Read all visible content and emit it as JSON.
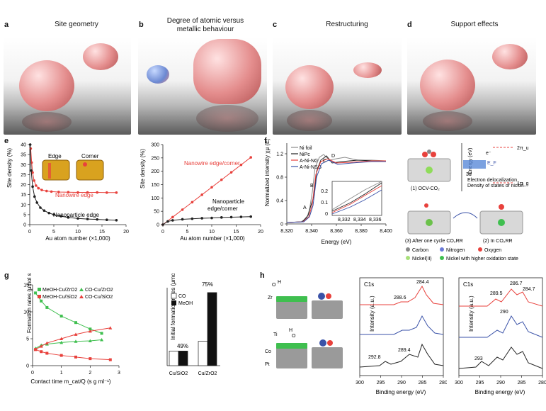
{
  "panels": {
    "a": {
      "label": "a",
      "title": "Site geometry"
    },
    "b": {
      "label": "b",
      "title_line1": "Degree of atomic versus",
      "title_line2": "metallic behaviour"
    },
    "c": {
      "label": "c",
      "title": "Restructuring"
    },
    "d": {
      "label": "d",
      "title": "Support effects"
    },
    "e": {
      "label": "e"
    },
    "f": {
      "label": "f"
    },
    "g": {
      "label": "g"
    },
    "h": {
      "label": "h"
    }
  },
  "colors": {
    "red": "#e8413c",
    "black": "#222222",
    "green": "#3fbf4f",
    "blue": "#3a52a8",
    "gray": "#8a8a8a"
  },
  "chart_data": [
    {
      "id": "e-left",
      "type": "line",
      "xlabel": "Au atom number (×1,000)",
      "ylabel": "Site density (%)",
      "xlim": [
        0,
        20
      ],
      "ylim": [
        0,
        40
      ],
      "xticks": [
        "0",
        "5",
        "10",
        "15",
        "20"
      ],
      "yticks": [
        "0",
        "5",
        "10",
        "15",
        "20",
        "25",
        "30",
        "35",
        "40"
      ],
      "inset_labels": [
        "Edge",
        "Corner"
      ],
      "series": [
        {
          "name": "Nanowire edge",
          "color": "red",
          "x": [
            0.2,
            0.4,
            0.6,
            0.9,
            1.3,
            1.8,
            2.5,
            3.5,
            4.5,
            6,
            8,
            10,
            12,
            14,
            16,
            18
          ],
          "y": [
            38,
            31,
            26,
            22,
            19.5,
            18.2,
            17.3,
            16.8,
            16.5,
            16.3,
            16.2,
            16.1,
            16.1,
            16.1,
            16,
            16
          ]
        },
        {
          "name": "Nanoparticle edge",
          "color": "black",
          "x": [
            0.1,
            0.3,
            0.6,
            1,
            1.5,
            2.2,
            3,
            4,
            5,
            6.5,
            8,
            10,
            12,
            14,
            16,
            18
          ],
          "y": [
            40,
            27,
            19,
            14,
            11,
            8.5,
            7,
            5.8,
            5,
            4.2,
            3.6,
            3.1,
            2.8,
            2.6,
            2.4,
            2.2
          ]
        }
      ]
    },
    {
      "id": "e-right",
      "type": "line",
      "xlabel": "Au atom number (×1,000)",
      "ylabel": "Site density (%)",
      "xlim": [
        0,
        20
      ],
      "ylim": [
        0,
        300
      ],
      "xticks": [
        "0",
        "5",
        "10",
        "15",
        "20"
      ],
      "yticks": [
        "0",
        "50",
        "100",
        "150",
        "200",
        "250",
        "300"
      ],
      "series": [
        {
          "name": "Nanowire edge/corner",
          "color": "red",
          "x": [
            0,
            2,
            4,
            6,
            8,
            10,
            12,
            14,
            16,
            18
          ],
          "y": [
            0,
            28,
            56,
            84,
            112,
            140,
            168,
            196,
            224,
            252
          ]
        },
        {
          "name_line1": "Nanoparticle",
          "name_line2": "edge/corner",
          "color": "black",
          "x": [
            0,
            1,
            2,
            4,
            6,
            8,
            10,
            12,
            14,
            16,
            18
          ],
          "y": [
            0,
            12,
            16,
            20,
            22,
            24,
            25,
            27,
            28,
            29,
            30
          ]
        }
      ]
    },
    {
      "id": "f",
      "type": "line",
      "xlabel": "Energy (eV)",
      "ylabel": "Normalized intensity χμ (E)",
      "xlim": [
        8320,
        8400
      ],
      "ylim": [
        0,
        1.3
      ],
      "xticks": [
        "8,320",
        "8,340",
        "8,360",
        "8,380",
        "8,400"
      ],
      "yticks": [
        "0",
        "0.4",
        "0.8",
        "1.2"
      ],
      "peak_labels": [
        "A",
        "B",
        "C",
        "D"
      ],
      "legend": [
        "Ni foil",
        "NiPc",
        "A-Ni-NG",
        "A-Ni-NSG"
      ],
      "inset": {
        "xticks": [
          "8,332",
          "8,334",
          "8,336"
        ],
        "yticks": [
          "0",
          "0.1",
          "0.2"
        ]
      },
      "series": [
        {
          "name": "Ni foil",
          "color": "gray"
        },
        {
          "name": "NiPc",
          "color": "black"
        },
        {
          "name": "A-Ni-NG",
          "color": "red"
        },
        {
          "name": "A-Ni-NSG",
          "color": "blue"
        }
      ]
    },
    {
      "id": "g-left",
      "type": "scatter",
      "xlabel": "Contact time m_cat/Q (s g ml⁻¹)",
      "ylabel": "Formation rates (μmol s⁻¹ g_Cu⁻¹)",
      "xlim": [
        0,
        3
      ],
      "ylim": [
        0,
        15
      ],
      "xticks": [
        "0",
        "1",
        "2",
        "3"
      ],
      "yticks": [
        "0",
        "5",
        "10",
        "15"
      ],
      "series": [
        {
          "name": "MeOH-Cu/ZrO2",
          "color": "green",
          "x": [
            0.1,
            0.3,
            0.5,
            1.0,
            1.5,
            2.0,
            2.4
          ],
          "y": [
            13.5,
            12,
            10.8,
            9.2,
            8.0,
            6.8,
            6.0
          ]
        },
        {
          "name": "CO-Cu/ZrO2",
          "color": "green",
          "x": [
            0.1,
            0.3,
            0.5,
            1.0,
            1.5,
            2.0,
            2.4
          ],
          "y": [
            3.2,
            3.8,
            4.0,
            4.3,
            4.5,
            4.6,
            4.8
          ]
        },
        {
          "name": "MeOH-Cu/SiO2",
          "color": "red",
          "x": [
            0.1,
            0.3,
            0.5,
            1.0,
            1.5,
            2.0,
            2.7
          ],
          "y": [
            3.0,
            2.6,
            2.3,
            1.9,
            1.6,
            1.3,
            1.1
          ]
        },
        {
          "name": "CO-Cu/SiO2",
          "color": "red",
          "x": [
            0.1,
            0.3,
            0.5,
            1.0,
            1.5,
            2.0,
            2.7
          ],
          "y": [
            3.0,
            3.6,
            4.2,
            5.0,
            5.8,
            6.4,
            7.0
          ]
        }
      ]
    },
    {
      "id": "g-right",
      "type": "bar",
      "ylabel": "Initial formation rates (μmol s⁻¹ g_Cu⁻¹)",
      "ylim": [
        0,
        16
      ],
      "categories": [
        "Cu/SiO2",
        "Cu/ZrO2"
      ],
      "series": [
        {
          "name": "CO",
          "values": [
            3,
            5
          ],
          "color": "#ffffff"
        },
        {
          "name": "MeOH",
          "values": [
            3,
            15
          ],
          "color": "#111111"
        }
      ],
      "annotations": [
        "49%",
        "75%"
      ]
    },
    {
      "id": "h-mid",
      "type": "line",
      "title": "C1s",
      "xlabel": "Binding energy (eV)",
      "ylabel": "Intensity (a.u.)",
      "xlim": [
        300,
        280
      ],
      "xticks": [
        "300",
        "295",
        "290",
        "285",
        "280"
      ],
      "peak_labels": [
        "284.4",
        "288.6",
        "292.8",
        "289.4"
      ],
      "series": [
        {
          "name": "top",
          "color": "red"
        },
        {
          "name": "middle",
          "color": "blue"
        },
        {
          "name": "bottom",
          "color": "black"
        }
      ]
    },
    {
      "id": "h-right",
      "type": "line",
      "title": "C1s",
      "xlabel": "Binding energy (eV)",
      "ylabel": "Intensity (a.u.)",
      "xlim": [
        300,
        280
      ],
      "xticks": [
        "300",
        "295",
        "290",
        "285",
        "280"
      ],
      "peak_labels": [
        "286.7",
        "289.5",
        "284.7",
        "290",
        "293"
      ],
      "series": [
        {
          "name": "top",
          "color": "red"
        },
        {
          "name": "middle",
          "color": "blue"
        },
        {
          "name": "bottom",
          "color": "black"
        }
      ]
    }
  ],
  "f_schematic": {
    "label1": "(1) OCV-CO₂",
    "label2": "(2) In CO₂RR",
    "label3": "(3) After one cycle CO₂RR",
    "energy": "Energy (eV)",
    "three_d": "3d",
    "electron_deloc": "Electron delocalization",
    "dos": "Density of states of nickel",
    "ef": "E_F",
    "e_minus": "e⁻",
    "orb_2pi": "2π_u",
    "orb_1pi": "1π_g",
    "legend": [
      "Carbon",
      "Nitrogen",
      "Oxygen",
      "Nickel(II)",
      "Nickel with higher oxidation state"
    ]
  },
  "h_schematic": {
    "zr": "Zr",
    "o": "O",
    "h": "H",
    "ti": "Ti",
    "co": "Co",
    "pt": "Pt"
  }
}
